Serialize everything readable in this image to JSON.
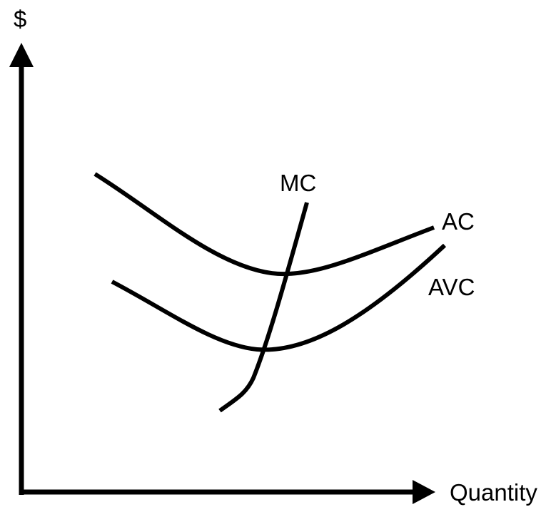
{
  "axes": {
    "y_label": "$",
    "x_label": "Quantity"
  },
  "curves": {
    "mc_label": "MC",
    "ac_label": "AC",
    "avc_label": "AVC"
  },
  "colors": {
    "line": "#000000",
    "background": "#ffffff"
  }
}
